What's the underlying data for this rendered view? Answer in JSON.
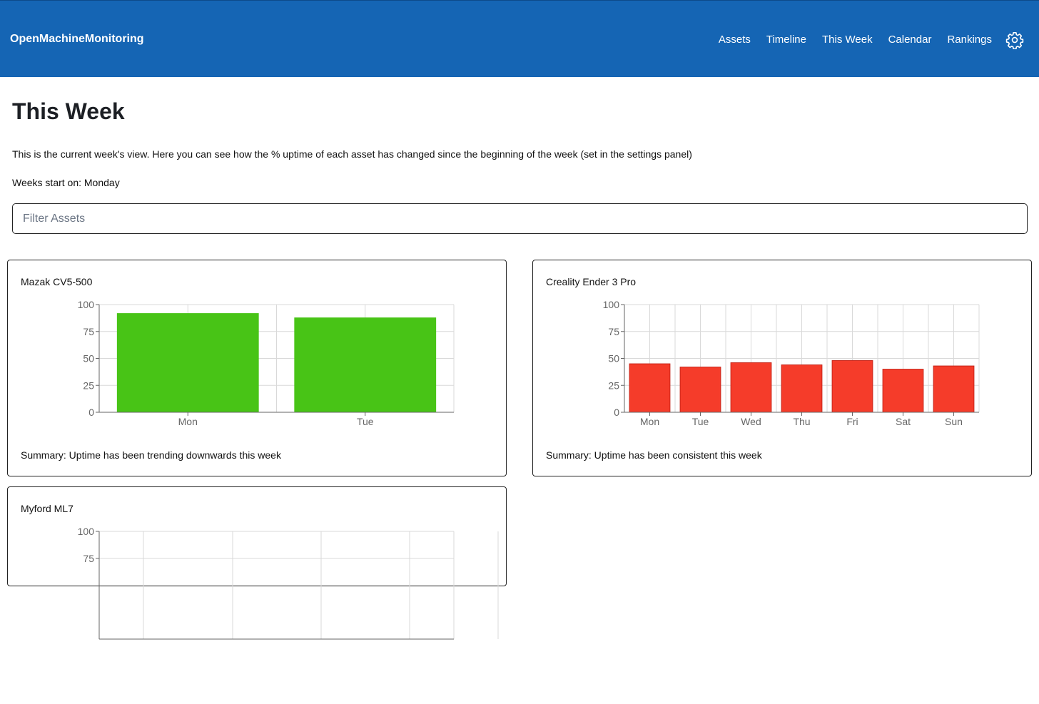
{
  "header": {
    "brand": "OpenMachineMonitoring",
    "nav": [
      "Assets",
      "Timeline",
      "This Week",
      "Calendar",
      "Rankings"
    ],
    "settings_icon": "gear-icon"
  },
  "page": {
    "title": "This Week",
    "description": "This is the current week's view. Here you can see how the % uptime of each asset has changed since the beginning of the week (set in the settings panel)",
    "week_start": "Weeks start on: Monday"
  },
  "filter": {
    "placeholder": "Filter Assets",
    "value": ""
  },
  "colors": {
    "navbar": "#1565b4",
    "good": "#48c416",
    "bad": "#f53c2a"
  },
  "assets": [
    {
      "name": "Mazak CV5-500",
      "summary": "Summary: Uptime has been trending downwards this week"
    },
    {
      "name": "Creality Ender 3 Pro",
      "summary": "Summary: Uptime has been consistent this week"
    },
    {
      "name": "Myford ML7",
      "summary": ""
    }
  ],
  "chart_data": [
    {
      "type": "bar",
      "categories": [
        "Mon",
        "Tue"
      ],
      "values": [
        92,
        88
      ],
      "ylim": [
        0,
        100
      ],
      "yticks": [
        0,
        25,
        50,
        75,
        100
      ],
      "color": "#48c416",
      "grid": true
    },
    {
      "type": "bar",
      "categories": [
        "Mon",
        "Tue",
        "Wed",
        "Thu",
        "Fri",
        "Sat",
        "Sun"
      ],
      "values": [
        45,
        42,
        46,
        44,
        48,
        40,
        43
      ],
      "ylim": [
        0,
        100
      ],
      "yticks": [
        0,
        25,
        50,
        75,
        100
      ],
      "color": "#f53c2a",
      "grid": true
    },
    {
      "type": "bar",
      "categories": [],
      "values": [],
      "ylim": [
        0,
        100
      ],
      "yticks": [
        75,
        100
      ],
      "grid": true
    }
  ]
}
